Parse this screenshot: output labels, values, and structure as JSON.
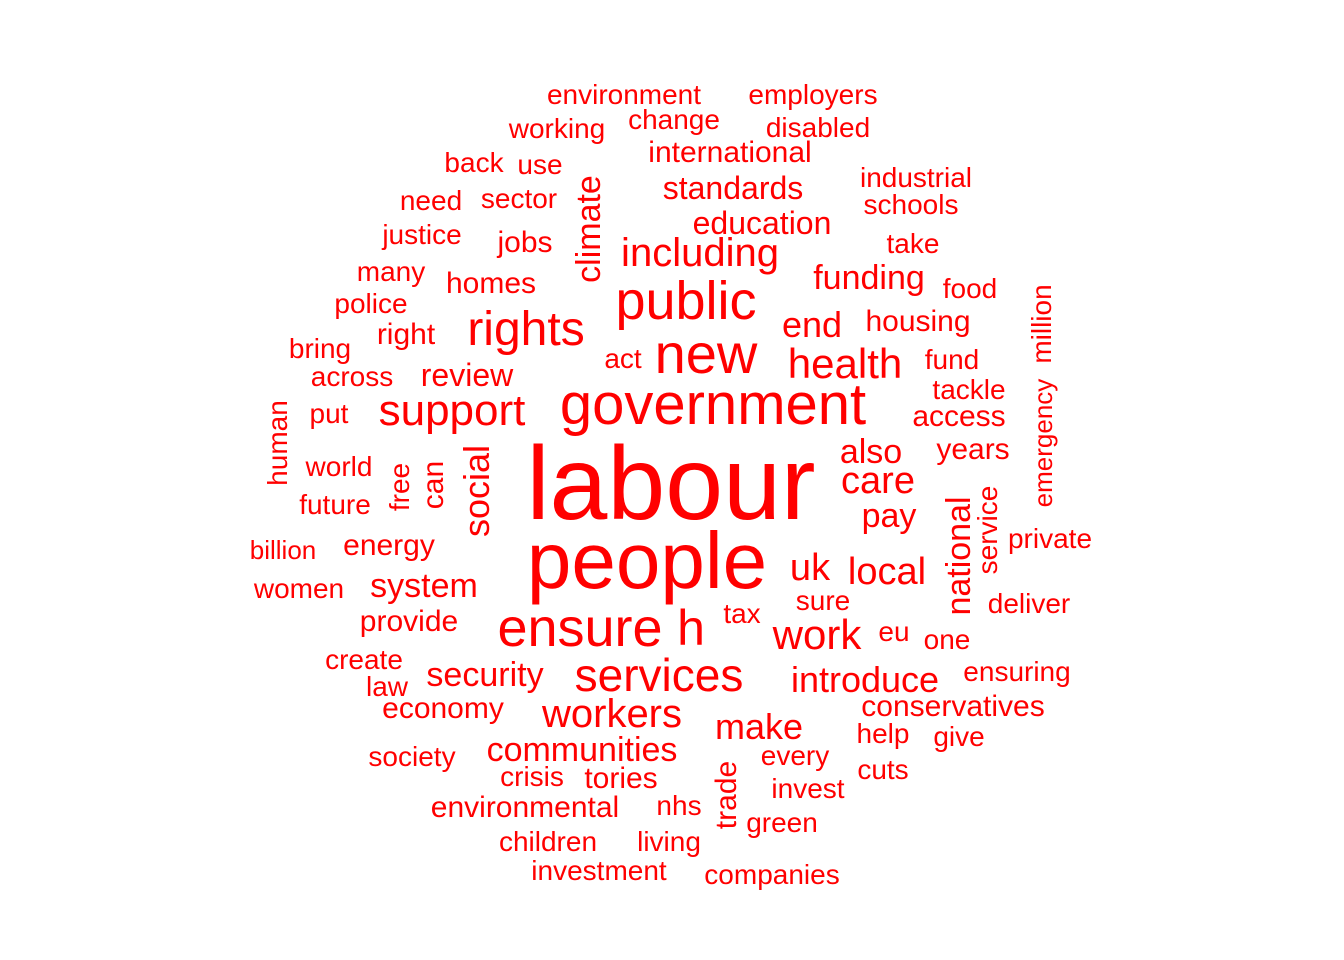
{
  "color": "#ff0000",
  "words": [
    {
      "text": "labour"
    },
    {
      "text": "people"
    },
    {
      "text": "government"
    },
    {
      "text": "ensure"
    },
    {
      "text": "public"
    },
    {
      "text": "new"
    },
    {
      "text": "rights"
    },
    {
      "text": "services"
    },
    {
      "text": "support"
    },
    {
      "text": "health"
    },
    {
      "text": "work"
    },
    {
      "text": "including"
    },
    {
      "text": "workers"
    },
    {
      "text": "local"
    },
    {
      "text": "uk"
    },
    {
      "text": "climate"
    },
    {
      "text": "social"
    },
    {
      "text": "care"
    },
    {
      "text": "introduce"
    },
    {
      "text": "make"
    },
    {
      "text": "communities"
    },
    {
      "text": "security"
    },
    {
      "text": "national"
    },
    {
      "text": "system"
    },
    {
      "text": "end"
    },
    {
      "text": "funding"
    },
    {
      "text": "education"
    },
    {
      "text": "standards"
    },
    {
      "text": "pay"
    },
    {
      "text": "also"
    },
    {
      "text": "review"
    },
    {
      "text": "h"
    },
    {
      "text": "international"
    },
    {
      "text": "homes"
    },
    {
      "text": "jobs"
    },
    {
      "text": "energy"
    },
    {
      "text": "housing"
    },
    {
      "text": "access"
    },
    {
      "text": "environmental"
    },
    {
      "text": "conservatives"
    },
    {
      "text": "provide"
    },
    {
      "text": "economy"
    },
    {
      "text": "tories"
    },
    {
      "text": "years"
    },
    {
      "text": "can"
    },
    {
      "text": "trade"
    },
    {
      "text": "environment"
    },
    {
      "text": "employers"
    },
    {
      "text": "working"
    },
    {
      "text": "change"
    },
    {
      "text": "disabled"
    },
    {
      "text": "back"
    },
    {
      "text": "use"
    },
    {
      "text": "industrial"
    },
    {
      "text": "schools"
    },
    {
      "text": "need"
    },
    {
      "text": "sector"
    },
    {
      "text": "justice"
    },
    {
      "text": "take"
    },
    {
      "text": "many"
    },
    {
      "text": "food"
    },
    {
      "text": "police"
    },
    {
      "text": "million"
    },
    {
      "text": "right"
    },
    {
      "text": "bring"
    },
    {
      "text": "act"
    },
    {
      "text": "fund"
    },
    {
      "text": "across"
    },
    {
      "text": "tackle"
    },
    {
      "text": "put"
    },
    {
      "text": "human"
    },
    {
      "text": "emergency"
    },
    {
      "text": "world"
    },
    {
      "text": "free"
    },
    {
      "text": "future"
    },
    {
      "text": "service"
    },
    {
      "text": "billion"
    },
    {
      "text": "private"
    },
    {
      "text": "women"
    },
    {
      "text": "deliver"
    },
    {
      "text": "tax"
    },
    {
      "text": "sure"
    },
    {
      "text": "eu"
    },
    {
      "text": "one"
    },
    {
      "text": "create"
    },
    {
      "text": "law"
    },
    {
      "text": "ensuring"
    },
    {
      "text": "help"
    },
    {
      "text": "give"
    },
    {
      "text": "society"
    },
    {
      "text": "every"
    },
    {
      "text": "crisis"
    },
    {
      "text": "cuts"
    },
    {
      "text": "invest"
    },
    {
      "text": "nhs"
    },
    {
      "text": "green"
    },
    {
      "text": "children"
    },
    {
      "text": "living"
    },
    {
      "text": "investment"
    },
    {
      "text": "companies"
    }
  ]
}
